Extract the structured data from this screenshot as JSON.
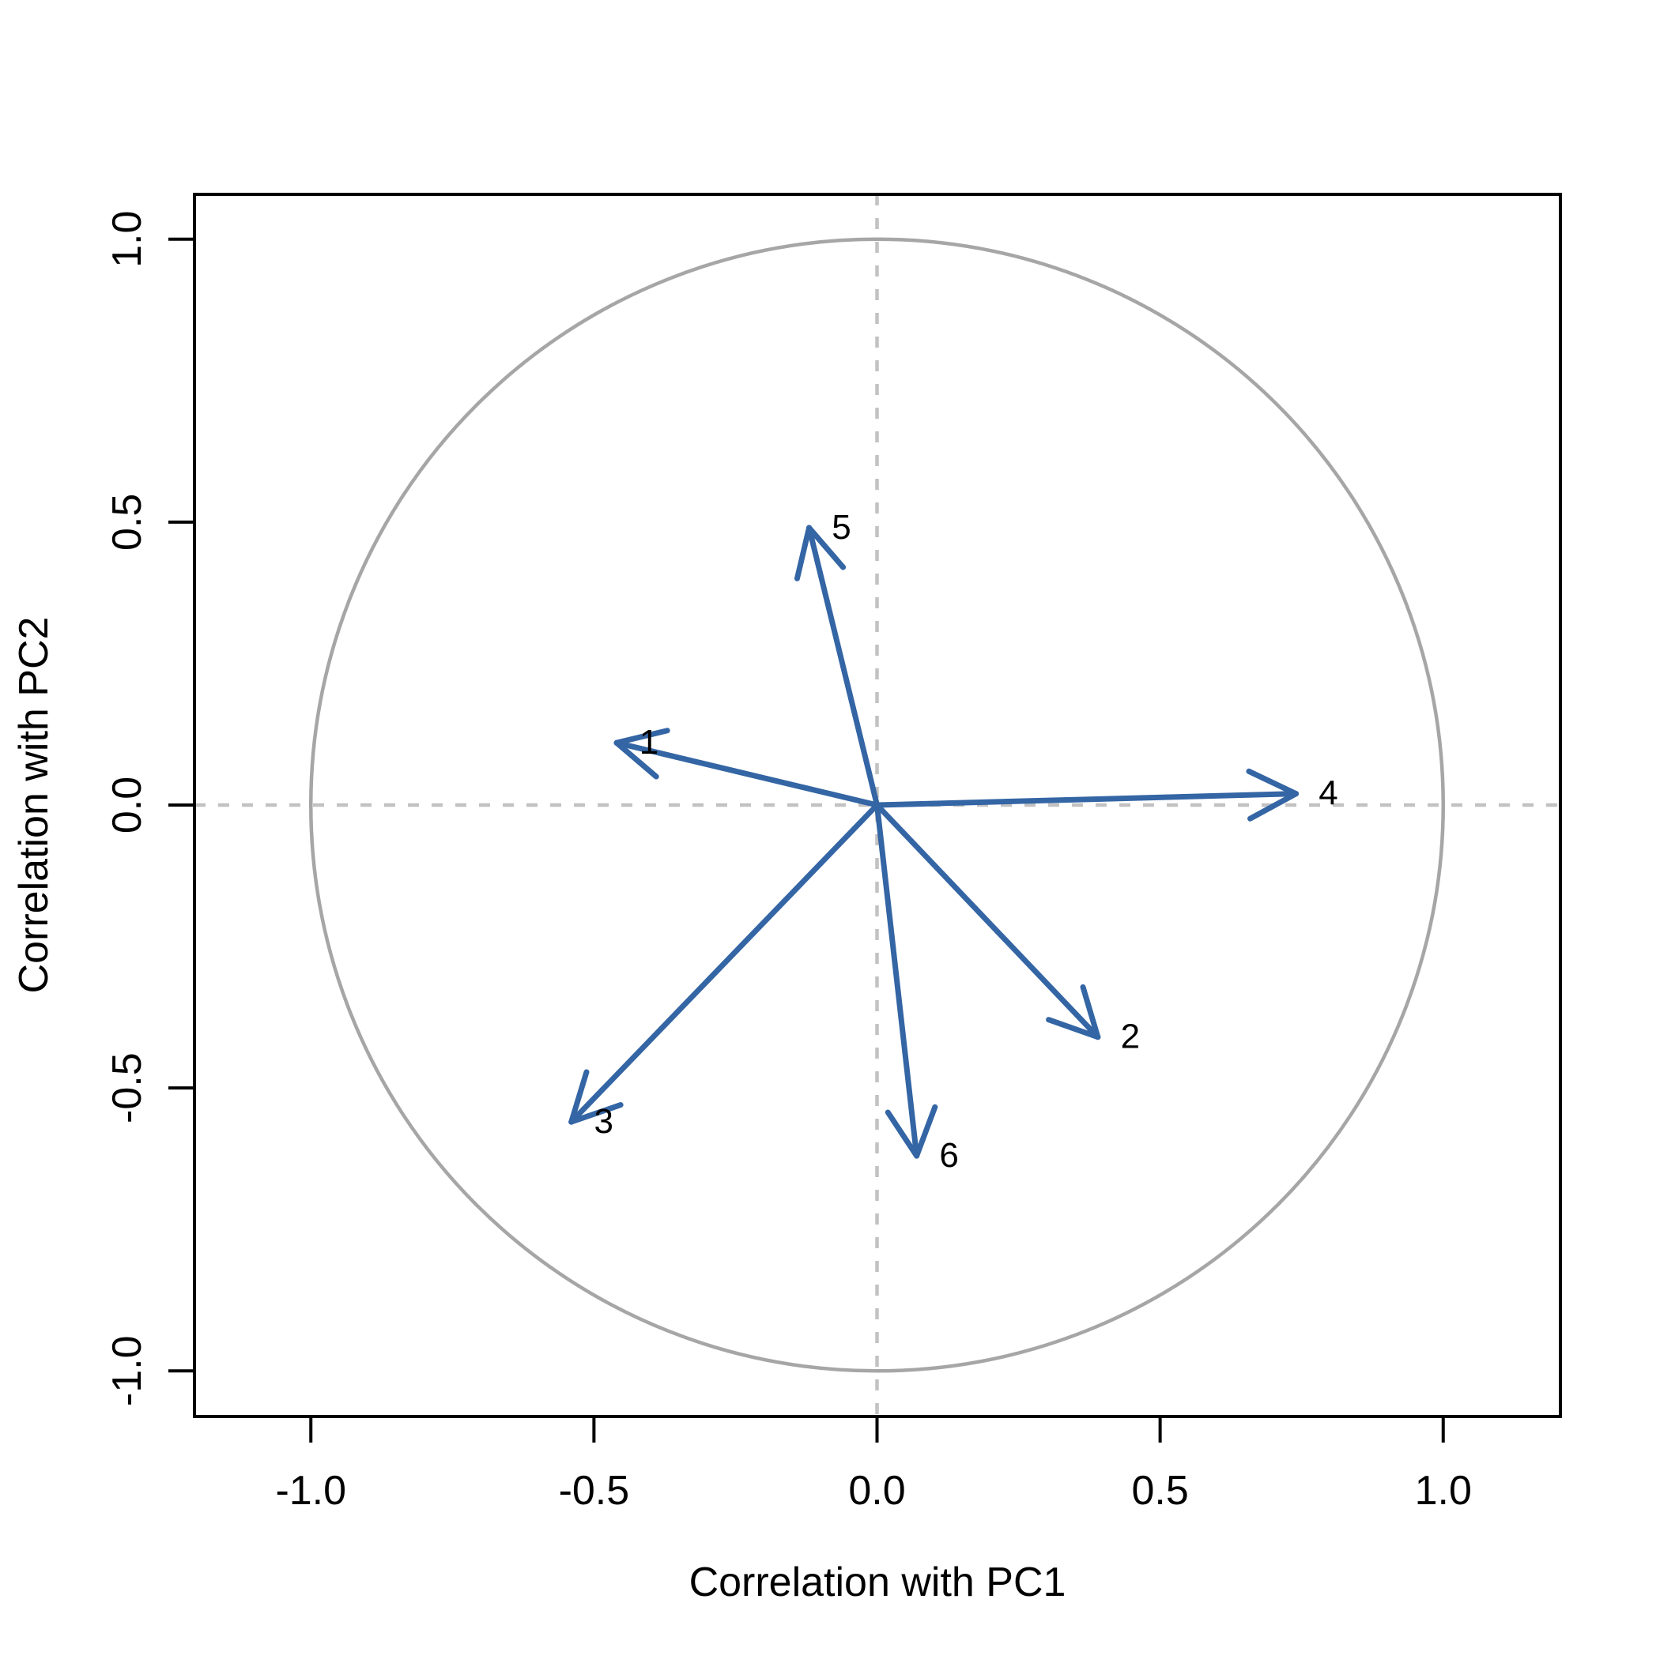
{
  "chart_data": {
    "type": "scatter",
    "subtype": "pca-variable-correlation-circle",
    "title": "",
    "xlabel": "Correlation with PC1",
    "ylabel": "Correlation with PC2",
    "xlim": [
      -1.21,
      1.21
    ],
    "ylim": [
      -1.08,
      1.08
    ],
    "xticks": {
      "values": [
        -1.0,
        -0.5,
        0.0,
        0.5,
        1.0
      ],
      "labels": [
        "-1.0",
        "-0.5",
        "0.0",
        "0.5",
        "1.0"
      ]
    },
    "yticks": {
      "values": [
        1.0,
        0.5,
        0.0,
        -0.5,
        -1.0
      ],
      "labels": [
        "1.0",
        "0.5",
        "0.0",
        "-0.5",
        "-1.0"
      ]
    },
    "grid": false,
    "legend": "none",
    "reference_shapes": {
      "unit_circle_radius": 1.0,
      "horizontal_dashed_line_y": 0.0,
      "vertical_dashed_line_x": 0.0
    },
    "series": [
      {
        "name": "variables",
        "style": "arrows-from-origin",
        "points": [
          {
            "label": "1",
            "x": -0.46,
            "y": 0.11
          },
          {
            "label": "2",
            "x": 0.39,
            "y": -0.41
          },
          {
            "label": "3",
            "x": -0.54,
            "y": -0.56
          },
          {
            "label": "4",
            "x": 0.74,
            "y": 0.02
          },
          {
            "label": "5",
            "x": -0.12,
            "y": 0.49
          },
          {
            "label": "6",
            "x": 0.07,
            "y": -0.62
          }
        ]
      }
    ],
    "colors": {
      "arrow": "#3465A4",
      "circle": "#A6A6A6",
      "dashed_lines": "#C2C2C2",
      "axis": "#000000",
      "background": "#FFFFFF"
    }
  }
}
